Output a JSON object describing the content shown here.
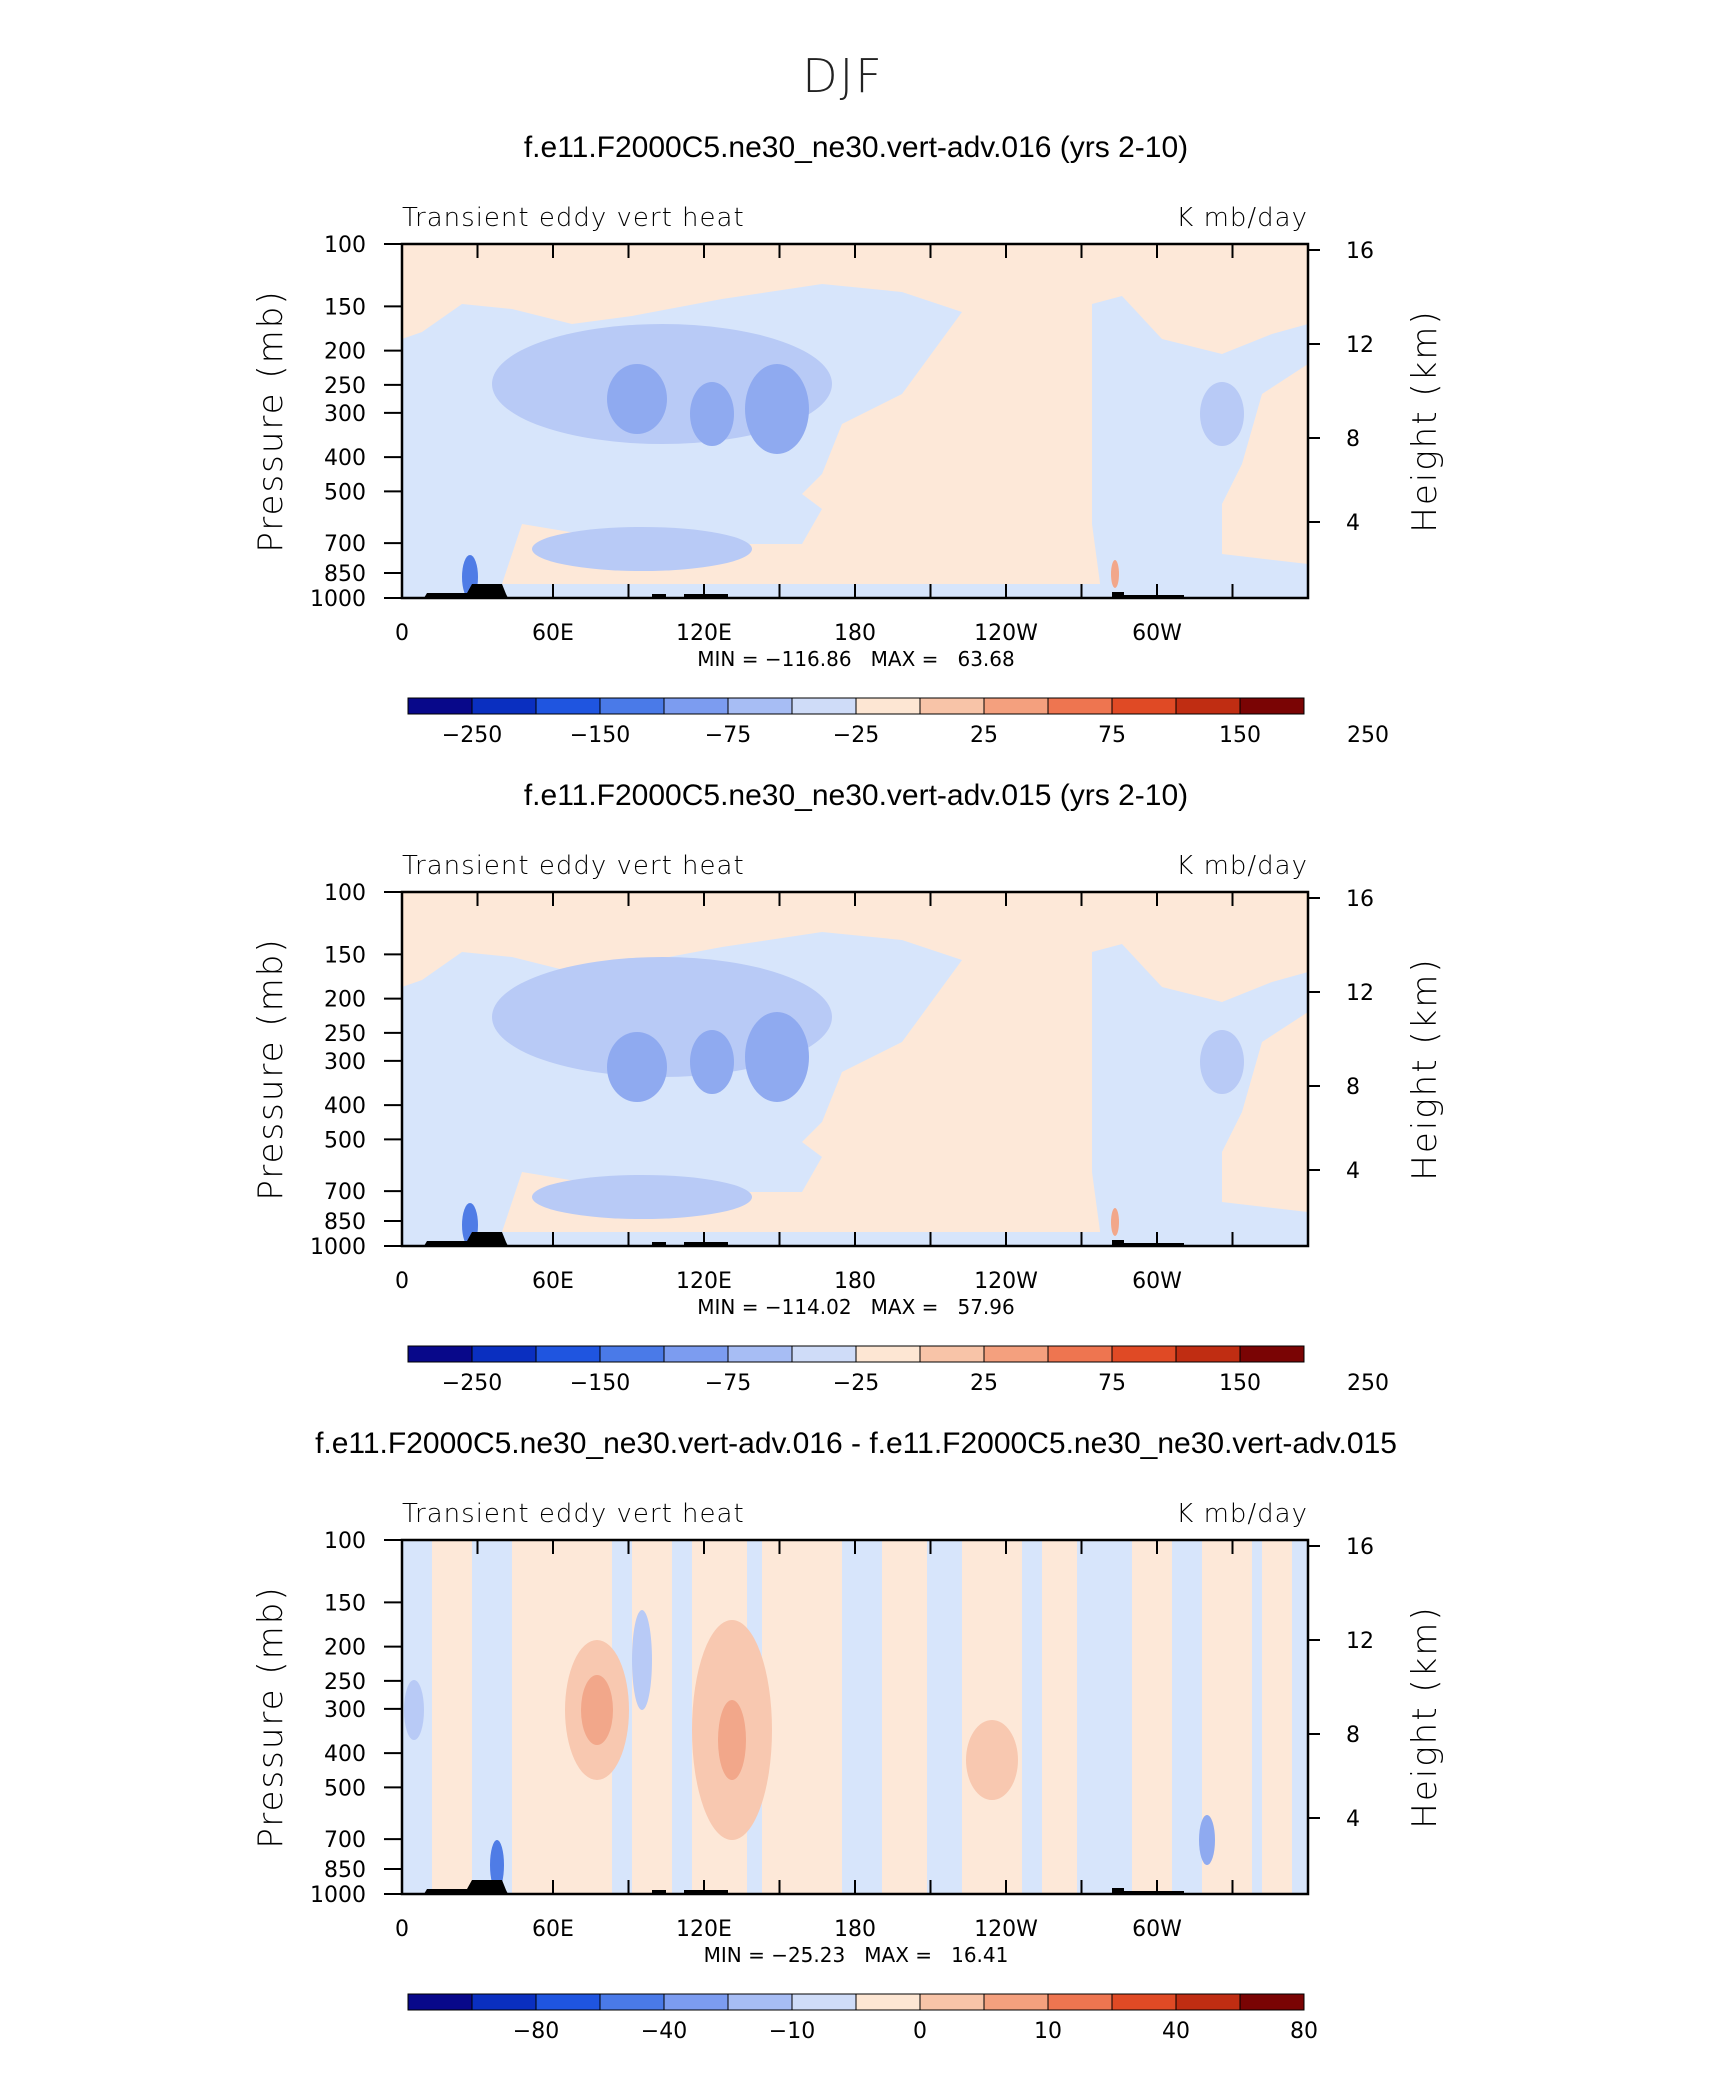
{
  "figure": {
    "title": "DJF"
  },
  "colors": {
    "bar_colors_main": [
      "#08088a",
      "#0a2fc0",
      "#1f55e0",
      "#4a7ae8",
      "#7c9cf0",
      "#a7bdf4",
      "#cfdcf8",
      "#fde6d3",
      "#f8c4a8",
      "#f4a07e",
      "#ee7550",
      "#e04a25",
      "#c02d12",
      "#7a0404"
    ],
    "shade_light_neg": "#d7e5fb",
    "shade_mid_neg": "#b8caf6",
    "shade_strong_neg": "#8faaf0",
    "shade_deep_neg": "#4f7ce6",
    "shade_light_pos": "#fde8d8",
    "shade_mid_pos": "#f8c8b0",
    "shade_strong_pos": "#f2a78a",
    "land": "#000000"
  },
  "panels": [
    {
      "title": "f.e11.F2000C5.ne30_ne30.vert-adv.016 (yrs 2-10)",
      "left_label": "Transient eddy vert heat",
      "right_label": "K mb/day",
      "y_axis_label": "Pressure (mb)",
      "y2_axis_label": "Height (km)",
      "y_ticks": [
        "100",
        "150",
        "200",
        "250",
        "300",
        "400",
        "500",
        "700",
        "850",
        "1000"
      ],
      "y2_ticks": [
        "16",
        "12",
        "8",
        "4"
      ],
      "x_ticks": [
        "0",
        "60E",
        "120E",
        "180",
        "120W",
        "60W"
      ],
      "stats": "MIN = −116.86   MAX =   63.68",
      "colorbar_labels": [
        "−250",
        "−150",
        "−75",
        "−25",
        "25",
        "75",
        "150",
        "250"
      ]
    },
    {
      "title": "f.e11.F2000C5.ne30_ne30.vert-adv.015 (yrs 2-10)",
      "left_label": "Transient eddy vert heat",
      "right_label": "K mb/day",
      "y_axis_label": "Pressure (mb)",
      "y2_axis_label": "Height (km)",
      "y_ticks": [
        "100",
        "150",
        "200",
        "250",
        "300",
        "400",
        "500",
        "700",
        "850",
        "1000"
      ],
      "y2_ticks": [
        "16",
        "12",
        "8",
        "4"
      ],
      "x_ticks": [
        "0",
        "60E",
        "120E",
        "180",
        "120W",
        "60W"
      ],
      "stats": "MIN = −114.02   MAX =   57.96",
      "colorbar_labels": [
        "−250",
        "−150",
        "−75",
        "−25",
        "25",
        "75",
        "150",
        "250"
      ]
    },
    {
      "title": "f.e11.F2000C5.ne30_ne30.vert-adv.016 - f.e11.F2000C5.ne30_ne30.vert-adv.015",
      "left_label": "Transient eddy vert heat",
      "right_label": "K mb/day",
      "y_axis_label": "Pressure (mb)",
      "y2_axis_label": "Height (km)",
      "y_ticks": [
        "100",
        "150",
        "200",
        "250",
        "300",
        "400",
        "500",
        "700",
        "850",
        "1000"
      ],
      "y2_ticks": [
        "16",
        "12",
        "8",
        "4"
      ],
      "x_ticks": [
        "0",
        "60E",
        "120E",
        "180",
        "120W",
        "60W"
      ],
      "stats": "MIN = −25.23   MAX =   16.41",
      "colorbar_labels": [
        "−80",
        "−40",
        "−10",
        "0",
        "10",
        "40",
        "80"
      ]
    }
  ],
  "chart_data": [
    {
      "type": "heatmap",
      "title": "f.e11.F2000C5.ne30_ne30.vert-adv.016 (yrs 2-10)",
      "xlabel": "",
      "ylabel": "Pressure (mb)",
      "y2label": "Height (km)",
      "x_tick_labels": [
        "0",
        "60E",
        "120E",
        "180",
        "120W",
        "60W"
      ],
      "y_tick_values": [
        100,
        150,
        200,
        250,
        300,
        400,
        500,
        700,
        850,
        1000
      ],
      "y_scale": "log",
      "ylim": [
        1000,
        100
      ],
      "xlim_deg_east": [
        0,
        360
      ],
      "units": "K mb/day",
      "min": -116.86,
      "max": 63.68,
      "contour_levels": [
        -250,
        -150,
        -75,
        -25,
        25,
        75,
        150,
        250
      ]
    },
    {
      "type": "heatmap",
      "title": "f.e11.F2000C5.ne30_ne30.vert-adv.015 (yrs 2-10)",
      "xlabel": "",
      "ylabel": "Pressure (mb)",
      "y2label": "Height (km)",
      "x_tick_labels": [
        "0",
        "60E",
        "120E",
        "180",
        "120W",
        "60W"
      ],
      "y_tick_values": [
        100,
        150,
        200,
        250,
        300,
        400,
        500,
        700,
        850,
        1000
      ],
      "y_scale": "log",
      "ylim": [
        1000,
        100
      ],
      "xlim_deg_east": [
        0,
        360
      ],
      "units": "K mb/day",
      "min": -114.02,
      "max": 57.96,
      "contour_levels": [
        -250,
        -150,
        -75,
        -25,
        25,
        75,
        150,
        250
      ]
    },
    {
      "type": "heatmap",
      "title": "f.e11.F2000C5.ne30_ne30.vert-adv.016 - f.e11.F2000C5.ne30_ne30.vert-adv.015",
      "xlabel": "",
      "ylabel": "Pressure (mb)",
      "y2label": "Height (km)",
      "x_tick_labels": [
        "0",
        "60E",
        "120E",
        "180",
        "120W",
        "60W"
      ],
      "y_tick_values": [
        100,
        150,
        200,
        250,
        300,
        400,
        500,
        700,
        850,
        1000
      ],
      "y_scale": "log",
      "ylim": [
        1000,
        100
      ],
      "xlim_deg_east": [
        0,
        360
      ],
      "units": "K mb/day",
      "min": -25.23,
      "max": 16.41,
      "contour_levels": [
        -80,
        -40,
        -10,
        0,
        10,
        40,
        80
      ]
    }
  ]
}
